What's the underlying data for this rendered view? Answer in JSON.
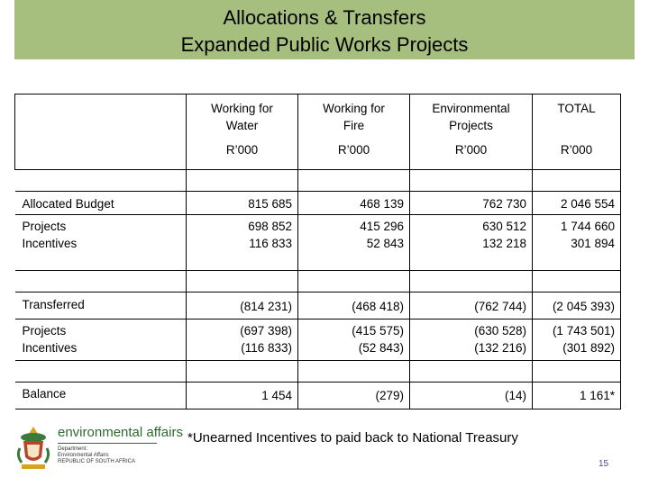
{
  "title": {
    "line1": "Allocations  & Transfers",
    "line2": "Expanded Public Works Projects"
  },
  "table": {
    "columns": [
      {
        "name": "Working for Water",
        "unit": "R’000"
      },
      {
        "name": "Working for Fire",
        "unit": "R’000"
      },
      {
        "name": "Environmental Projects",
        "unit": "R’000"
      },
      {
        "name": "TOTAL",
        "unit": "R’000"
      }
    ],
    "allocated": {
      "label": "Allocated Budget",
      "values": [
        "815 685",
        "468 139",
        "762 730",
        "2 046 554"
      ]
    },
    "allocated_split": {
      "labels": [
        "Projects",
        "Incentives"
      ],
      "projects": [
        "698 852",
        "415 296",
        "630 512",
        "1 744 660"
      ],
      "incentives": [
        "116 833",
        "52 843",
        "132 218",
        "301 894"
      ]
    },
    "transferred": {
      "label": "Transferred",
      "values": [
        "(814 231)",
        "(468 418)",
        "(762 744)",
        "(2 045 393)"
      ]
    },
    "transferred_split": {
      "labels": [
        "Projects",
        "Incentives"
      ],
      "projects": [
        "(697 398)",
        "(415 575)",
        "(630 528)",
        "(1 743 501)"
      ],
      "incentives": [
        "(116 833)",
        "(52 843)",
        "(132 216)",
        "(301 892)"
      ]
    },
    "balance": {
      "label": "Balance",
      "values": [
        "1 454",
        "(279)",
        "(14)",
        "1 161*"
      ]
    }
  },
  "footnote": "*Unearned Incentives  to paid back to National Treasury",
  "page_number": "15",
  "logo": {
    "main": "environmental affairs",
    "sub1": "Department:",
    "sub2": "Environmental Affairs",
    "sub3": "REPUBLIC OF SOUTH AFRICA"
  },
  "colors": {
    "title_bg": "#a6bf7e",
    "logo_green": "#2e6b2e"
  }
}
